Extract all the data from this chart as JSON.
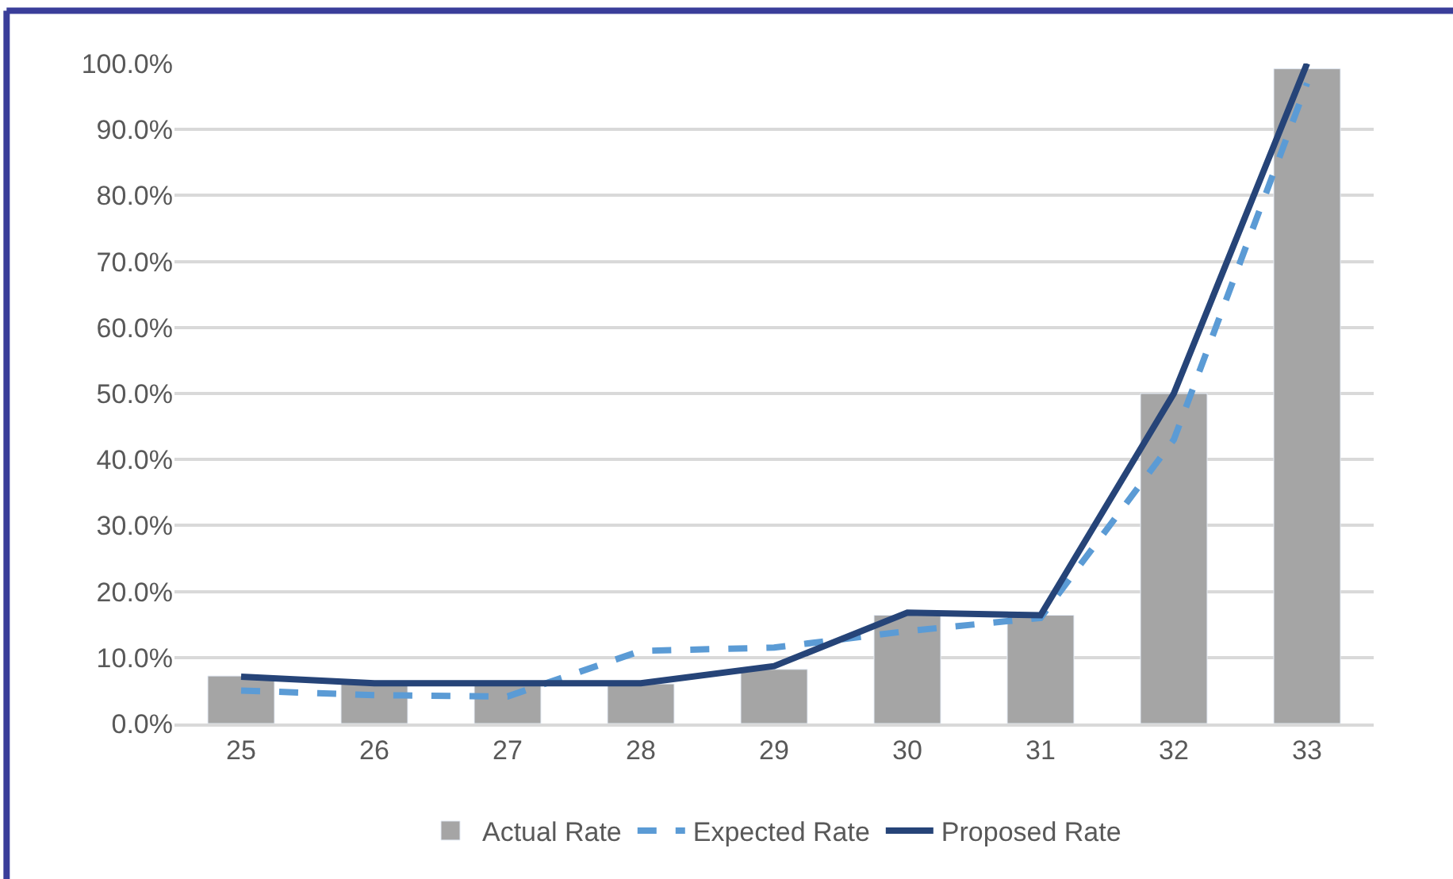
{
  "chart_data": {
    "type": "bar",
    "categories": [
      "25",
      "26",
      "27",
      "28",
      "29",
      "30",
      "31",
      "32",
      "33"
    ],
    "series": [
      {
        "name": "Actual Rate",
        "color": "#a5a5a5",
        "values": [
          7.2,
          6,
          6,
          6,
          8.2,
          16.4,
          16.4,
          50,
          99.2
        ]
      },
      {
        "name": "Expected Rate",
        "type": "line",
        "color": "#5b9bd5",
        "line_style": "dashed",
        "values": [
          5,
          4.3,
          4.1,
          11,
          11.5,
          14,
          16,
          43,
          97
        ]
      },
      {
        "name": "Proposed Rate",
        "type": "line",
        "color": "#264478",
        "line_style": "solid",
        "values": [
          7.1,
          6.1,
          6.1,
          6.1,
          8.7,
          16.8,
          16.4,
          50,
          100
        ]
      }
    ],
    "ylim": [
      0,
      100
    ],
    "yticks": [
      {
        "value": 0,
        "label": "0.0%"
      },
      {
        "value": 10,
        "label": "10.0%"
      },
      {
        "value": 20,
        "label": "20.0%"
      },
      {
        "value": 30,
        "label": "30.0%"
      },
      {
        "value": 40,
        "label": "40.0%"
      },
      {
        "value": 50,
        "label": "50.0%"
      },
      {
        "value": 60,
        "label": "60.0%"
      },
      {
        "value": 70,
        "label": "70.0%"
      },
      {
        "value": 80,
        "label": "80.0%"
      },
      {
        "value": 90,
        "label": "90.0%"
      },
      {
        "value": 100,
        "label": "100.0%"
      }
    ],
    "grid": "y",
    "legend": "bottom",
    "marker": "none"
  }
}
